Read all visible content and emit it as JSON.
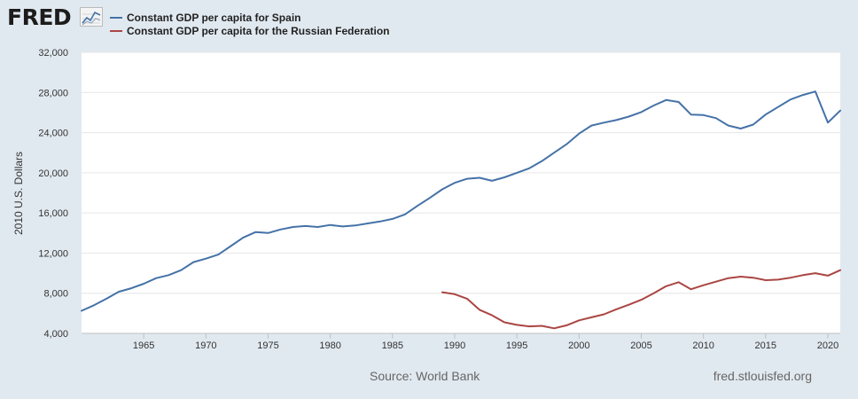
{
  "brand": {
    "name": "FRED"
  },
  "legend": [
    {
      "label": "Constant GDP per capita for Spain",
      "color": "#4572a7"
    },
    {
      "label": "Constant GDP per capita for the Russian Federation",
      "color": "#aa4643"
    }
  ],
  "footer": {
    "source": "Source: World Bank",
    "url": "fred.stlouisfed.org"
  },
  "chart_data": {
    "type": "line",
    "ylabel": "2010 U.S. Dollars",
    "ylim": [
      4000,
      32000
    ],
    "xlim": [
      1960,
      2021
    ],
    "yticks": [
      4000,
      8000,
      12000,
      16000,
      20000,
      24000,
      28000,
      32000
    ],
    "ytick_labels": [
      "4,000",
      "8,000",
      "12,000",
      "16,000",
      "20,000",
      "24,000",
      "28,000",
      "32,000"
    ],
    "xticks": [
      1965,
      1970,
      1975,
      1980,
      1985,
      1990,
      1995,
      2000,
      2005,
      2010,
      2015,
      2020
    ],
    "grid": true,
    "series": [
      {
        "name": "Constant GDP per capita for Spain",
        "color": "#4572a7",
        "x": [
          1960,
          1961,
          1962,
          1963,
          1964,
          1965,
          1966,
          1967,
          1968,
          1969,
          1970,
          1971,
          1972,
          1973,
          1974,
          1975,
          1976,
          1977,
          1978,
          1979,
          1980,
          1981,
          1982,
          1983,
          1984,
          1985,
          1986,
          1987,
          1988,
          1989,
          1990,
          1991,
          1992,
          1993,
          1994,
          1995,
          1996,
          1997,
          1998,
          1999,
          2000,
          2001,
          2002,
          2003,
          2004,
          2005,
          2006,
          2007,
          2008,
          2009,
          2010,
          2011,
          2012,
          2013,
          2014,
          2015,
          2016,
          2017,
          2018,
          2019,
          2020,
          2021
        ],
        "values": [
          6250,
          6800,
          7450,
          8150,
          8500,
          8950,
          9500,
          9800,
          10300,
          11100,
          11450,
          11850,
          12700,
          13550,
          14100,
          14000,
          14350,
          14600,
          14700,
          14600,
          14800,
          14650,
          14750,
          14950,
          15150,
          15400,
          15850,
          16700,
          17500,
          18350,
          19000,
          19400,
          19500,
          19200,
          19550,
          20000,
          20450,
          21150,
          22000,
          22850,
          23900,
          24700,
          25000,
          25250,
          25600,
          26050,
          26700,
          27250,
          27050,
          25800,
          25750,
          25450,
          24700,
          24400,
          24800,
          25800,
          26550,
          27300,
          27750,
          28100,
          25000,
          26200
        ]
      },
      {
        "name": "Constant GDP per capita for the Russian Federation",
        "color": "#aa4643",
        "x": [
          1989,
          1990,
          1991,
          1992,
          1993,
          1994,
          1995,
          1996,
          1997,
          1998,
          1999,
          2000,
          2001,
          2002,
          2003,
          2004,
          2005,
          2006,
          2007,
          2008,
          2009,
          2010,
          2011,
          2012,
          2013,
          2014,
          2015,
          2016,
          2017,
          2018,
          2019,
          2020,
          2021
        ],
        "values": [
          8100,
          7900,
          7450,
          6350,
          5800,
          5100,
          4850,
          4700,
          4750,
          4500,
          4800,
          5300,
          5600,
          5900,
          6400,
          6850,
          7350,
          8000,
          8700,
          9100,
          8400,
          8800,
          9150,
          9500,
          9650,
          9550,
          9300,
          9350,
          9550,
          9800,
          10000,
          9750,
          10300
        ]
      }
    ]
  }
}
